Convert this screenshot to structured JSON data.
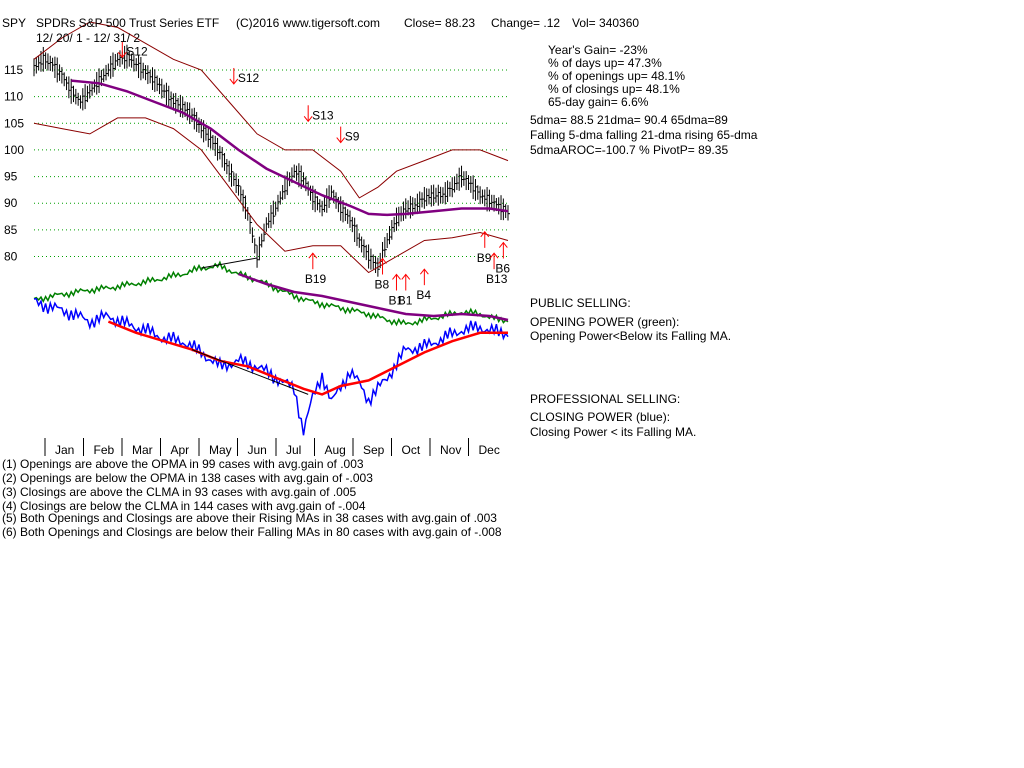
{
  "header": {
    "symbol": "SPY",
    "title": "SPDRs S&P 500 Trust Series ETF",
    "copyright": "(C)2016 www.tigersoft.com",
    "close": "Close=  88.23",
    "change": "Change= .12",
    "vol": "Vol= 340360",
    "date_range": "12/ 20/ 1 -  12/ 31/ 2"
  },
  "stats": [
    "Year's Gain= -23%",
    "% of days up= 47.3%",
    "% of openings up= 48.1%",
    "% of closings up= 48.1%",
    "65-day gain= 6.6%"
  ],
  "ma_info": [
    "5dma= 88.5  21dma= 90.4  65dma=89",
    "Falling 5-dma  falling 21-dma  rising 65-dma",
    "5dmaAROC=-100.7 %  PivotP= 89.35"
  ],
  "public_panel": {
    "title": "PUBLIC SELLING:",
    "subtitle": "OPENING POWER (green):",
    "note": "Opening Power<Below its Falling MA."
  },
  "pro_panel": {
    "title": "PROFESSIONAL SELLING:",
    "subtitle": "CLOSING POWER (blue):",
    "note": "Closing Power < its Falling MA."
  },
  "footer_lines": [
    "(1) Openings are above the OPMA in  99 cases with avg.gain of  .003",
    "(2) Openings are below the OPMA in  138 cases with avg.gain of -.003",
    "(3) Closings are above the CLMA in  93 cases with avg.gain of  .005",
    "(4) Closings are below the CLMA in  144 cases with avg.gain of -.004",
    "(5) Both Openings and Closings are above their Rising MAs in  38 cases with avg.gain of  .003",
    "(6) Both Openings and Closings are below their Falling MAs in  80 cases with avg.gain of -.008"
  ],
  "colors": {
    "price_bar": "#000000",
    "band": "#8b0000",
    "ma65": "#800080",
    "opening_power": "#008000",
    "closing_power": "#0000ff",
    "cp_ma": "#ff0000",
    "grid": "#00a000",
    "signal": "#ff0000"
  },
  "chart_data": {
    "type": "line",
    "price_axis": {
      "ylim": [
        75,
        118
      ],
      "ticks": [
        80,
        85,
        90,
        95,
        100,
        105,
        110,
        115
      ]
    },
    "months": [
      "Jan",
      "Feb",
      "Mar",
      "Apr",
      "May",
      "Jun",
      "Jul",
      "Aug",
      "Sep",
      "Oct",
      "Nov",
      "Dec"
    ],
    "price_close": [
      [
        0,
        115.5
      ],
      [
        2,
        117
      ],
      [
        4,
        116
      ],
      [
        6,
        114
      ],
      [
        8,
        111
      ],
      [
        10,
        109
      ],
      [
        12,
        111
      ],
      [
        14,
        113
      ],
      [
        16,
        115
      ],
      [
        18,
        117
      ],
      [
        20,
        117.5
      ],
      [
        22,
        116
      ],
      [
        24,
        114.5
      ],
      [
        26,
        113
      ],
      [
        28,
        111
      ],
      [
        30,
        109
      ],
      [
        32,
        108
      ],
      [
        34,
        106.5
      ],
      [
        36,
        104
      ],
      [
        38,
        102
      ],
      [
        40,
        99.5
      ],
      [
        42,
        96
      ],
      [
        44,
        93
      ],
      [
        46,
        88
      ],
      [
        48,
        80
      ],
      [
        50,
        86
      ],
      [
        52,
        89
      ],
      [
        54,
        93
      ],
      [
        56,
        96
      ],
      [
        58,
        94.5
      ],
      [
        60,
        91
      ],
      [
        62,
        89
      ],
      [
        64,
        92
      ],
      [
        66,
        89
      ],
      [
        68,
        87
      ],
      [
        70,
        83
      ],
      [
        72,
        80
      ],
      [
        74,
        78
      ],
      [
        76,
        83
      ],
      [
        78,
        87
      ],
      [
        80,
        89
      ],
      [
        82,
        89.5
      ],
      [
        84,
        91
      ],
      [
        86,
        91.5
      ],
      [
        88,
        91.5
      ],
      [
        90,
        93
      ],
      [
        92,
        95
      ],
      [
        94,
        93.5
      ],
      [
        96,
        91.5
      ],
      [
        98,
        90.5
      ],
      [
        100,
        89.5
      ],
      [
        102,
        88.2
      ]
    ],
    "ma65": [
      [
        8,
        113
      ],
      [
        14,
        112.5
      ],
      [
        20,
        111
      ],
      [
        26,
        109
      ],
      [
        32,
        107
      ],
      [
        38,
        104
      ],
      [
        44,
        100
      ],
      [
        50,
        96.5
      ],
      [
        56,
        94
      ],
      [
        62,
        91.5
      ],
      [
        68,
        89.5
      ],
      [
        72,
        88
      ],
      [
        76,
        87.8
      ],
      [
        80,
        88
      ],
      [
        86,
        88.5
      ],
      [
        92,
        89
      ],
      [
        98,
        89
      ],
      [
        102,
        88.5
      ]
    ],
    "upper_band": [
      [
        0,
        117
      ],
      [
        6,
        121
      ],
      [
        12,
        124
      ],
      [
        18,
        123
      ],
      [
        24,
        120
      ],
      [
        30,
        117
      ],
      [
        36,
        115
      ],
      [
        42,
        109
      ],
      [
        48,
        103
      ],
      [
        54,
        100
      ],
      [
        60,
        100
      ],
      [
        66,
        96
      ],
      [
        70,
        91
      ],
      [
        74,
        93
      ],
      [
        78,
        96
      ],
      [
        84,
        98
      ],
      [
        90,
        100
      ],
      [
        96,
        100
      ],
      [
        102,
        98
      ]
    ],
    "lower_band": [
      [
        0,
        105
      ],
      [
        6,
        104
      ],
      [
        12,
        103
      ],
      [
        18,
        106
      ],
      [
        24,
        106
      ],
      [
        30,
        104
      ],
      [
        36,
        100
      ],
      [
        42,
        93
      ],
      [
        48,
        86
      ],
      [
        54,
        81
      ],
      [
        60,
        82
      ],
      [
        66,
        82
      ],
      [
        72,
        77
      ],
      [
        78,
        80
      ],
      [
        84,
        83
      ],
      [
        90,
        83.5
      ],
      [
        96,
        84.5
      ],
      [
        102,
        83
      ]
    ],
    "signals": [
      {
        "label": "S12",
        "x": 19,
        "price": 117,
        "dir": "down"
      },
      {
        "label": "S12",
        "x": 43,
        "price": 112,
        "dir": "down"
      },
      {
        "label": "S13",
        "x": 59,
        "price": 105,
        "dir": "down"
      },
      {
        "label": "S9",
        "x": 66,
        "price": 101,
        "dir": "down"
      },
      {
        "label": "B19",
        "x": 60,
        "price": 81,
        "dir": "up"
      },
      {
        "label": "B8",
        "x": 75,
        "price": 80,
        "dir": "up"
      },
      {
        "label": "B1",
        "x": 78,
        "price": 77,
        "dir": "up"
      },
      {
        "label": "B1",
        "x": 80,
        "price": 77,
        "dir": "up"
      },
      {
        "label": "B4",
        "x": 84,
        "price": 78,
        "dir": "up"
      },
      {
        "label": "B9",
        "x": 97,
        "price": 85,
        "dir": "up"
      },
      {
        "label": "B13",
        "x": 99,
        "price": 81,
        "dir": "up"
      },
      {
        "label": "B6",
        "x": 101,
        "price": 83,
        "dir": "up"
      }
    ],
    "opening_power": [
      [
        0,
        -2
      ],
      [
        4,
        0
      ],
      [
        8,
        1.5
      ],
      [
        12,
        3
      ],
      [
        16,
        4
      ],
      [
        20,
        5.5
      ],
      [
        24,
        7
      ],
      [
        28,
        9
      ],
      [
        32,
        11
      ],
      [
        36,
        14
      ],
      [
        40,
        15
      ],
      [
        44,
        11
      ],
      [
        48,
        8
      ],
      [
        52,
        4
      ],
      [
        56,
        0
      ],
      [
        60,
        -3
      ],
      [
        64,
        -5
      ],
      [
        68,
        -7
      ],
      [
        72,
        -9
      ],
      [
        76,
        -12
      ],
      [
        80,
        -14
      ],
      [
        84,
        -12
      ],
      [
        88,
        -10
      ],
      [
        92,
        -8
      ],
      [
        96,
        -9
      ],
      [
        100,
        -12
      ],
      [
        102,
        -12
      ]
    ],
    "opening_power_ma": [
      [
        44,
        11
      ],
      [
        50,
        6
      ],
      [
        56,
        2
      ],
      [
        62,
        0
      ],
      [
        68,
        -3
      ],
      [
        74,
        -6
      ],
      [
        80,
        -9
      ],
      [
        86,
        -10
      ],
      [
        92,
        -9
      ],
      [
        98,
        -10
      ],
      [
        102,
        -12
      ]
    ],
    "closing_power": [
      [
        0,
        10
      ],
      [
        4,
        8
      ],
      [
        8,
        6
      ],
      [
        12,
        3
      ],
      [
        16,
        5
      ],
      [
        20,
        2
      ],
      [
        24,
        0
      ],
      [
        28,
        -3
      ],
      [
        32,
        -4
      ],
      [
        36,
        -8
      ],
      [
        40,
        -13
      ],
      [
        44,
        -11
      ],
      [
        48,
        -13
      ],
      [
        52,
        -17
      ],
      [
        56,
        -21
      ],
      [
        58,
        -36
      ],
      [
        60,
        -24
      ],
      [
        62,
        -16
      ],
      [
        64,
        -26
      ],
      [
        66,
        -20
      ],
      [
        68,
        -15
      ],
      [
        70,
        -19
      ],
      [
        72,
        -25
      ],
      [
        74,
        -21
      ],
      [
        76,
        -17
      ],
      [
        80,
        -7
      ],
      [
        84,
        -6
      ],
      [
        88,
        -3
      ],
      [
        92,
        0
      ],
      [
        96,
        1
      ],
      [
        100,
        -1
      ],
      [
        102,
        -1
      ]
    ],
    "closing_power_ma": [
      [
        16,
        3
      ],
      [
        22,
        -1
      ],
      [
        28,
        -4
      ],
      [
        34,
        -7
      ],
      [
        40,
        -11
      ],
      [
        46,
        -13
      ],
      [
        52,
        -17
      ],
      [
        58,
        -21
      ],
      [
        62,
        -23
      ],
      [
        66,
        -20
      ],
      [
        72,
        -18
      ],
      [
        78,
        -13
      ],
      [
        84,
        -8
      ],
      [
        90,
        -4
      ],
      [
        96,
        -1
      ],
      [
        102,
        -1
      ]
    ]
  }
}
